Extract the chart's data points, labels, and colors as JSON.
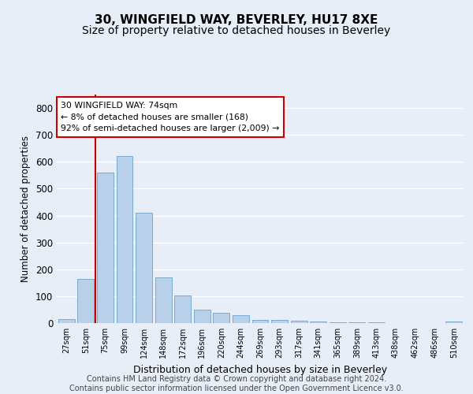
{
  "title": "30, WINGFIELD WAY, BEVERLEY, HU17 8XE",
  "subtitle": "Size of property relative to detached houses in Beverley",
  "xlabel": "Distribution of detached houses by size in Beverley",
  "ylabel": "Number of detached properties",
  "categories": [
    "27sqm",
    "51sqm",
    "75sqm",
    "99sqm",
    "124sqm",
    "148sqm",
    "172sqm",
    "196sqm",
    "220sqm",
    "244sqm",
    "269sqm",
    "293sqm",
    "317sqm",
    "341sqm",
    "365sqm",
    "389sqm",
    "413sqm",
    "438sqm",
    "462sqm",
    "486sqm",
    "510sqm"
  ],
  "values": [
    15,
    165,
    560,
    620,
    410,
    170,
    103,
    50,
    37,
    29,
    12,
    12,
    8,
    5,
    4,
    4,
    3,
    1,
    1,
    0,
    6
  ],
  "bar_color": "#b8d0ea",
  "bar_edge_color": "#7aaacf",
  "vline_index": 2,
  "vline_color": "#cc0000",
  "annotation_text": "30 WINGFIELD WAY: 74sqm\n← 8% of detached houses are smaller (168)\n92% of semi-detached houses are larger (2,009) →",
  "annotation_box_color": "#ffffff",
  "annotation_box_edge": "#cc0000",
  "ylim": [
    0,
    850
  ],
  "yticks": [
    0,
    100,
    200,
    300,
    400,
    500,
    600,
    700,
    800
  ],
  "footer_text": "Contains HM Land Registry data © Crown copyright and database right 2024.\nContains public sector information licensed under the Open Government Licence v3.0.",
  "bg_color": "#e8eef8",
  "plot_bg_color": "#e8eef8",
  "grid_color": "#ffffff",
  "title_fontsize": 11,
  "subtitle_fontsize": 10,
  "footer_fontsize": 7
}
